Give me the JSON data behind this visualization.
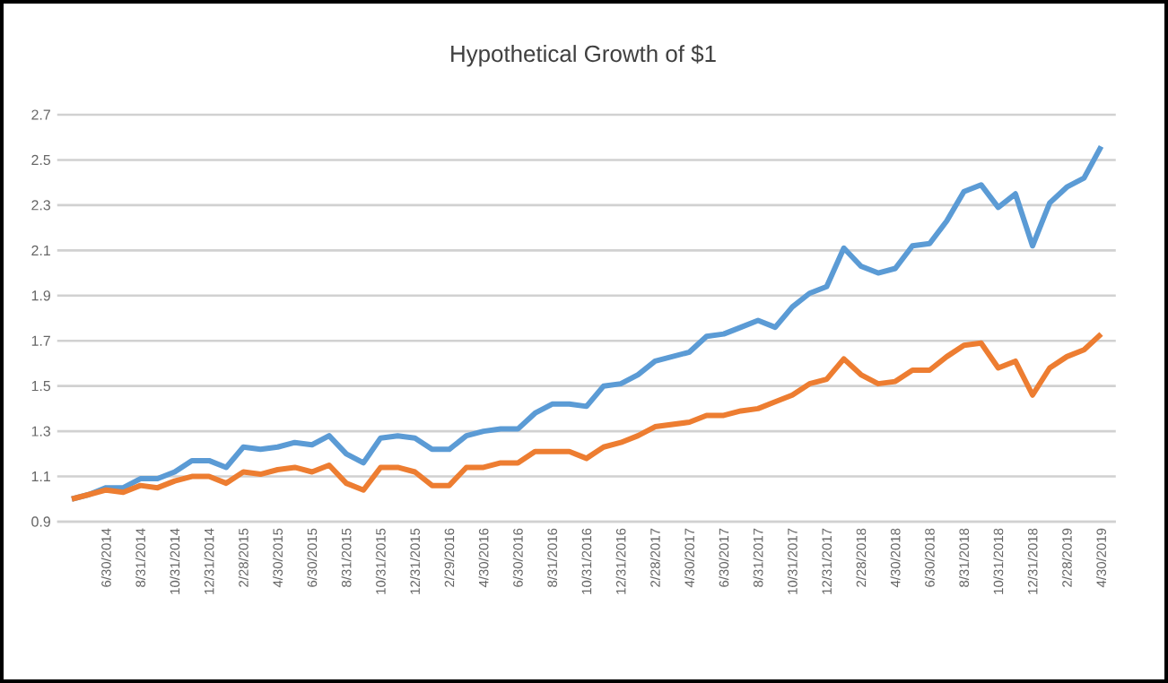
{
  "chart_data": {
    "type": "line",
    "title": "Hypothetical Growth of $1",
    "categories": [
      null,
      null,
      "6/30/2014",
      null,
      "8/31/2014",
      null,
      "10/31/2014",
      null,
      "12/31/2014",
      null,
      "2/28/2015",
      null,
      "4/30/2015",
      null,
      "6/30/2015",
      null,
      "8/31/2015",
      null,
      "10/31/2015",
      null,
      "12/31/2015",
      null,
      "2/29/2016",
      null,
      "4/30/2016",
      null,
      "6/30/2016",
      null,
      "8/31/2016",
      null,
      "10/31/2016",
      null,
      "12/31/2016",
      null,
      "2/28/2017",
      null,
      "4/30/2017",
      null,
      "6/30/2017",
      null,
      "8/31/2017",
      null,
      "10/31/2017",
      null,
      "12/31/2017",
      null,
      "2/28/2018",
      null,
      "4/30/2018",
      null,
      "6/30/2018",
      null,
      "8/31/2018",
      null,
      "10/31/2018",
      null,
      "12/31/2018",
      null,
      "2/28/2019",
      null,
      "4/30/2019"
    ],
    "series": [
      {
        "color": "#5b9bd5",
        "values": [
          1.0,
          1.02,
          1.05,
          1.05,
          1.09,
          1.09,
          1.12,
          1.17,
          1.17,
          1.14,
          1.23,
          1.22,
          1.23,
          1.25,
          1.24,
          1.28,
          1.2,
          1.16,
          1.27,
          1.28,
          1.27,
          1.22,
          1.22,
          1.28,
          1.3,
          1.31,
          1.31,
          1.38,
          1.42,
          1.42,
          1.41,
          1.5,
          1.51,
          1.55,
          1.61,
          1.63,
          1.65,
          1.72,
          1.73,
          1.76,
          1.79,
          1.76,
          1.85,
          1.91,
          1.94,
          2.11,
          2.03,
          2.0,
          2.02,
          2.12,
          2.13,
          2.23,
          2.36,
          2.39,
          2.29,
          2.35,
          2.12,
          2.31,
          2.38,
          2.42,
          2.56
        ]
      },
      {
        "color": "#ed7d31",
        "values": [
          1.0,
          1.02,
          1.04,
          1.03,
          1.06,
          1.05,
          1.08,
          1.1,
          1.1,
          1.07,
          1.12,
          1.11,
          1.13,
          1.14,
          1.12,
          1.15,
          1.07,
          1.04,
          1.14,
          1.14,
          1.12,
          1.06,
          1.06,
          1.14,
          1.14,
          1.16,
          1.16,
          1.21,
          1.21,
          1.21,
          1.18,
          1.23,
          1.25,
          1.28,
          1.32,
          1.33,
          1.34,
          1.37,
          1.37,
          1.39,
          1.4,
          1.43,
          1.46,
          1.51,
          1.53,
          1.62,
          1.55,
          1.51,
          1.52,
          1.57,
          1.57,
          1.63,
          1.68,
          1.69,
          1.58,
          1.61,
          1.46,
          1.58,
          1.63,
          1.66,
          1.73
        ]
      }
    ],
    "ylim": [
      0.9,
      2.7
    ],
    "yticks": [
      0.9,
      1.1,
      1.3,
      1.5,
      1.7,
      1.9,
      2.1,
      2.3,
      2.5,
      2.7
    ],
    "grid": "y",
    "line_style": "solid",
    "marker": "none"
  }
}
